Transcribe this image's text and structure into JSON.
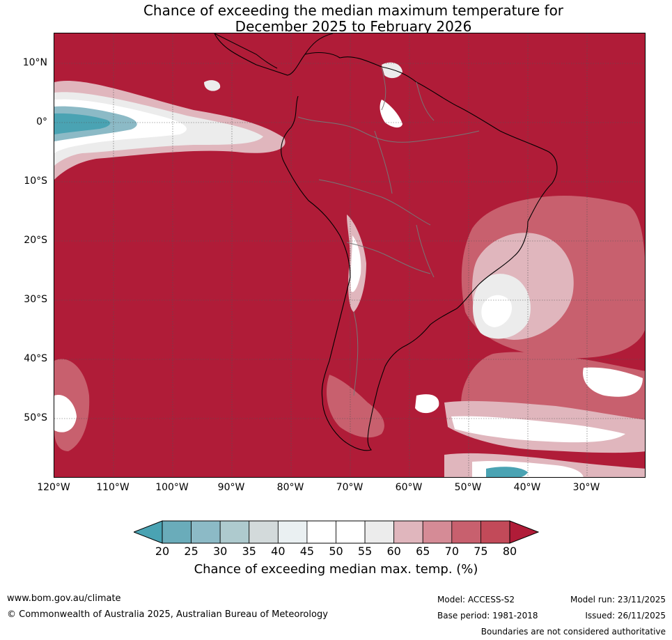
{
  "title": {
    "line1": "Chance of exceeding the median maximum temperature for",
    "line2": "December 2025 to February 2026"
  },
  "axes": {
    "latitudes": [
      "10°N",
      "0°",
      "10°S",
      "20°S",
      "30°S",
      "40°S",
      "50°S"
    ],
    "longitudes": [
      "120°W",
      "110°W",
      "100°W",
      "90°W",
      "80°W",
      "70°W",
      "60°W",
      "50°W",
      "40°W",
      "30°W"
    ]
  },
  "colorbar": {
    "ticks": [
      "20",
      "25",
      "30",
      "35",
      "40",
      "45",
      "50",
      "55",
      "60",
      "65",
      "70",
      "75",
      "80"
    ],
    "colors": [
      "#4aa3b3",
      "#6aacba",
      "#8cbac6",
      "#aecace",
      "#d3dadb",
      "#eaf0f2",
      "#ffffff",
      "#ffffff",
      "#ececec",
      "#e0b6bd",
      "#d58b96",
      "#c8606e",
      "#c24a59",
      "#b01c38"
    ],
    "label": "Chance of exceeding median max. temp. (%)"
  },
  "footer": {
    "url": "www.bom.gov.au/climate",
    "copyright": "© Commonwealth of Australia 2025, Australian Bureau of Meteorology",
    "model": "Model: ACCESS-S2",
    "base_period": "Base period: 1981-2018",
    "model_run": "Model run: 23/11/2025",
    "issued": "Issued: 26/11/2025",
    "disclaimer": "Boundaries are not considered authoritative"
  }
}
